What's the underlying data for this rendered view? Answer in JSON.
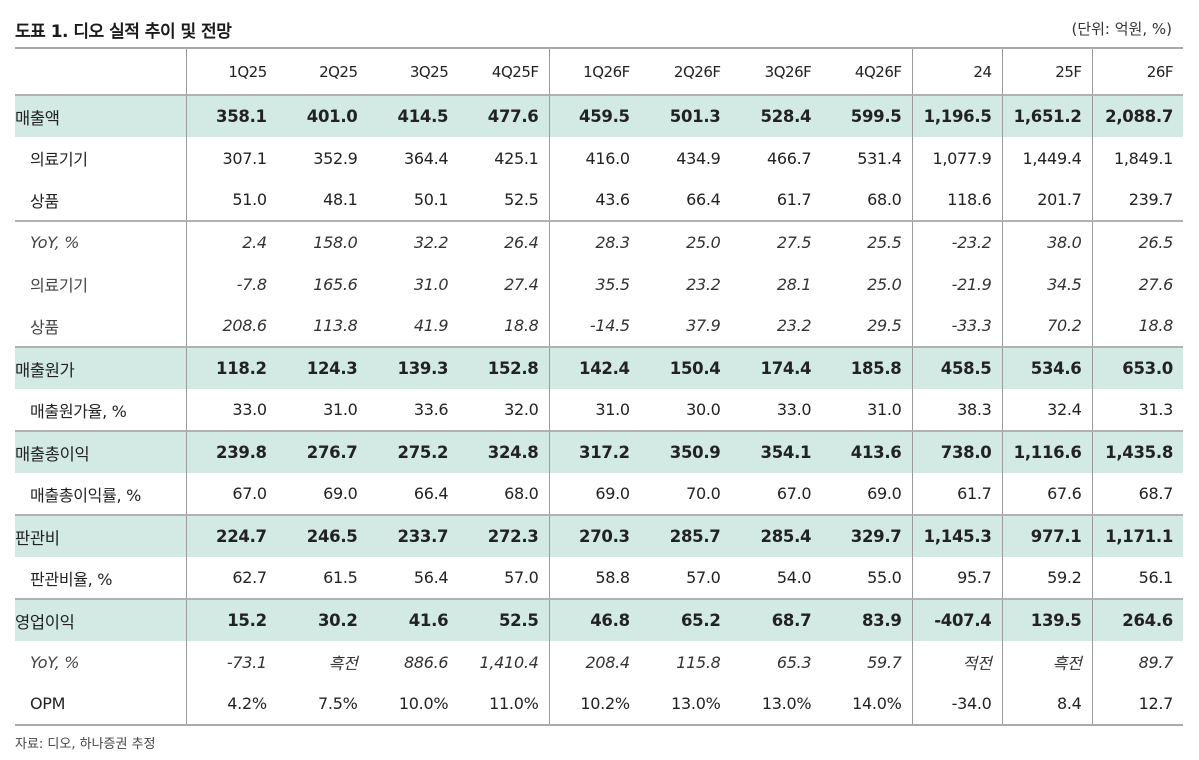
{
  "title": "도표 1. 디오 실적 추이 및 전망",
  "unit": "(단위: 억원, %)",
  "source": "자료: 디오, 하나증권 추정",
  "columns": [
    "1Q25",
    "2Q25",
    "3Q25",
    "4Q25F",
    "1Q26F",
    "2Q26F",
    "3Q26F",
    "4Q26F",
    "24",
    "25F",
    "26F"
  ],
  "rows": [
    {
      "label": "매출액",
      "values": [
        "358.1",
        "401.0",
        "414.5",
        "477.6",
        "459.5",
        "501.3",
        "528.4",
        "599.5",
        "1,196.5",
        "1,651.2",
        "2,088.7"
      ]
    },
    {
      "label": "의료기기",
      "values": [
        "307.1",
        "352.9",
        "364.4",
        "425.1",
        "416.0",
        "434.9",
        "466.7",
        "531.4",
        "1,077.9",
        "1,449.4",
        "1,849.1"
      ]
    },
    {
      "label": "상품",
      "values": [
        "51.0",
        "48.1",
        "50.1",
        "52.5",
        "43.6",
        "66.4",
        "61.7",
        "68.0",
        "118.6",
        "201.7",
        "239.7"
      ]
    },
    {
      "label": "YoY, %",
      "values": [
        "2.4",
        "158.0",
        "32.2",
        "26.4",
        "28.3",
        "25.0",
        "27.5",
        "25.5",
        "-23.2",
        "38.0",
        "26.5"
      ]
    },
    {
      "label": "의료기기",
      "values": [
        "-7.8",
        "165.6",
        "31.0",
        "27.4",
        "35.5",
        "23.2",
        "28.1",
        "25.0",
        "-21.9",
        "34.5",
        "27.6"
      ]
    },
    {
      "label": "상품",
      "values": [
        "208.6",
        "113.8",
        "41.9",
        "18.8",
        "-14.5",
        "37.9",
        "23.2",
        "29.5",
        "-33.3",
        "70.2",
        "18.8"
      ]
    },
    {
      "label": "매출원가",
      "values": [
        "118.2",
        "124.3",
        "139.3",
        "152.8",
        "142.4",
        "150.4",
        "174.4",
        "185.8",
        "458.5",
        "534.6",
        "653.0"
      ]
    },
    {
      "label": "매출원가율, %",
      "values": [
        "33.0",
        "31.0",
        "33.6",
        "32.0",
        "31.0",
        "30.0",
        "33.0",
        "31.0",
        "38.3",
        "32.4",
        "31.3"
      ]
    },
    {
      "label": "매출총이익",
      "values": [
        "239.8",
        "276.7",
        "275.2",
        "324.8",
        "317.2",
        "350.9",
        "354.1",
        "413.6",
        "738.0",
        "1,116.6",
        "1,435.8"
      ]
    },
    {
      "label": "매출총이익률, %",
      "values": [
        "67.0",
        "69.0",
        "66.4",
        "68.0",
        "69.0",
        "70.0",
        "67.0",
        "69.0",
        "61.7",
        "67.6",
        "68.7"
      ]
    },
    {
      "label": "판관비",
      "values": [
        "224.7",
        "246.5",
        "233.7",
        "272.3",
        "270.3",
        "285.7",
        "285.4",
        "329.7",
        "1,145.3",
        "977.1",
        "1,171.1"
      ]
    },
    {
      "label": "판관비율, %",
      "values": [
        "62.7",
        "61.5",
        "56.4",
        "57.0",
        "58.8",
        "57.0",
        "54.0",
        "55.0",
        "95.7",
        "59.2",
        "56.1"
      ]
    },
    {
      "label": "영업이익",
      "values": [
        "15.2",
        "30.2",
        "41.6",
        "52.5",
        "46.8",
        "65.2",
        "68.7",
        "83.9",
        "-407.4",
        "139.5",
        "264.6"
      ]
    },
    {
      "label": "YoY, %",
      "values": [
        "-73.1",
        "흑전",
        "886.6",
        "1,410.4",
        "208.4",
        "115.8",
        "65.3",
        "59.7",
        "적전",
        "흑전",
        "89.7"
      ]
    },
    {
      "label": "OPM",
      "values": [
        "4.2%",
        "7.5%",
        "10.0%",
        "11.0%",
        "10.2%",
        "13.0%",
        "13.0%",
        "14.0%",
        "-34.0",
        "8.4",
        "12.7"
      ]
    }
  ],
  "colors": {
    "highlight_row": "#d3e9e4",
    "border": "#9a9a9a"
  }
}
